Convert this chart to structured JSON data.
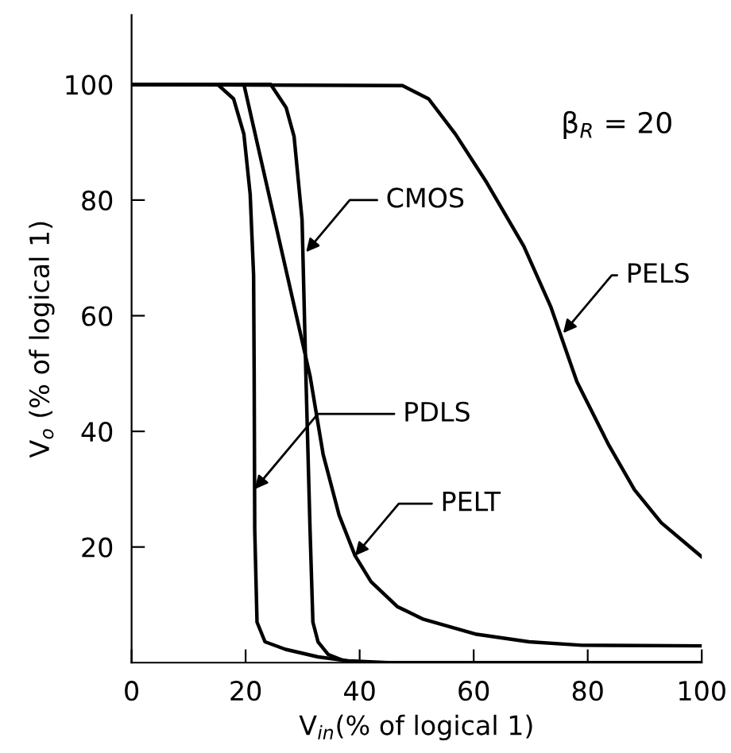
{
  "chart_data": {
    "type": "line",
    "xlabel": "V$_{in}$(% of logical 1)",
    "ylabel": "V$_{o}$ (% of logical 1)",
    "xlim": [
      0,
      100
    ],
    "ylim": [
      0,
      112
    ],
    "xticks": [
      0,
      20,
      40,
      60,
      80,
      100
    ],
    "yticks": [
      20,
      40,
      60,
      80,
      100
    ],
    "grid": false,
    "legend": false,
    "marker": "none",
    "line_style": "solid",
    "series": [
      {
        "color": "#000000",
        "x": [
          0,
          15.1,
          17.9,
          19.7,
          20.8,
          21.4,
          21.5,
          21.6,
          22,
          23.4,
          27,
          32.7,
          38,
          45,
          100
        ],
        "values": [
          100,
          100,
          97.5,
          91.4,
          81,
          67,
          50,
          23,
          7,
          3.6,
          2.3,
          1,
          0.3,
          0,
          0
        ]
      },
      {
        "color": "#000000",
        "x": [
          0,
          19.7,
          31.3,
          33.6,
          36.4,
          39.2,
          42,
          46.6,
          51.2,
          60.5,
          69.7,
          79,
          100
        ],
        "values": [
          100,
          100,
          49.6,
          36,
          25.5,
          18.5,
          14,
          9.7,
          7.5,
          4.9,
          3.6,
          3,
          2.9
        ]
      },
      {
        "color": "#000000",
        "x": [
          0,
          24.4,
          27.1,
          28.5,
          29.9,
          30.6,
          31.3,
          31.8,
          32.7,
          34.5,
          37.3,
          42,
          100
        ],
        "values": [
          100,
          100,
          96,
          91,
          76.6,
          48.6,
          23,
          7,
          3.6,
          1.4,
          0.3,
          0,
          0
        ]
      },
      {
        "color": "#000000",
        "x": [
          0,
          47.5,
          52.1,
          56.8,
          62.3,
          68.8,
          73.5,
          78.1,
          83.6,
          88.2,
          92.9,
          100
        ],
        "values": [
          100,
          99.8,
          97.5,
          91.4,
          83,
          72,
          61.6,
          48.6,
          37.8,
          29.9,
          24.2,
          18.3
        ]
      }
    ],
    "annotations": [
      {
        "text": "CMOS",
        "x": 30.6,
        "y": 71
      },
      {
        "text": "PELS",
        "x": 75.7,
        "y": 57
      },
      {
        "text": "PDLS",
        "x": 21.6,
        "y": 30
      },
      {
        "text": "PELT",
        "x": 39.2,
        "y": 18.5
      },
      "β$_{R}$ = 20"
    ]
  }
}
